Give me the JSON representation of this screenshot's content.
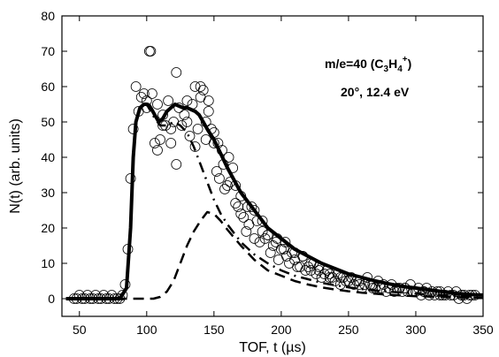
{
  "chart_data": {
    "type": "scatter",
    "title": "",
    "xlabel_prefix": "TOF, t (",
    "xlabel_unit": "µs",
    "xlabel_suffix": ")",
    "ylabel": "N(t) (arb. units)",
    "xlim": [
      37,
      350
    ],
    "ylim": [
      -5,
      80
    ],
    "xticks": [
      50,
      100,
      150,
      200,
      250,
      300,
      350
    ],
    "yticks": [
      0,
      10,
      20,
      30,
      40,
      50,
      60,
      70,
      80
    ],
    "annotation_line1": {
      "prefix": "m/e=40  (C",
      "sub1": "3",
      "mid": "H",
      "sub2": "4",
      "sup": "+",
      "suffix": ")"
    },
    "annotation_line2": "20°, 12.4 eV",
    "grid": false,
    "legend": "none",
    "series": [
      {
        "marker": "open-circle",
        "x": [
          46,
          48,
          50,
          52,
          54,
          56,
          58,
          60,
          62,
          64,
          66,
          68,
          70,
          72,
          74,
          76,
          78,
          80,
          82,
          84,
          86,
          88,
          90,
          92,
          94,
          96,
          98,
          100,
          102,
          104,
          106,
          108,
          110,
          112,
          114,
          116,
          118,
          120,
          122,
          124,
          126,
          128,
          130,
          132,
          134,
          136,
          138,
          140,
          142,
          144,
          146,
          148,
          150,
          152,
          154,
          156,
          158,
          160,
          162,
          164,
          166,
          168,
          170,
          172,
          174,
          176,
          178,
          180,
          182,
          184,
          186,
          188,
          190,
          192,
          194,
          196,
          198,
          200,
          202,
          204,
          206,
          208,
          210,
          212,
          214,
          216,
          218,
          220,
          222,
          224,
          226,
          228,
          230,
          232,
          234,
          236,
          238,
          240,
          242,
          244,
          246,
          248,
          250,
          252,
          254,
          256,
          258,
          260,
          262,
          264,
          266,
          268,
          270,
          272,
          274,
          276,
          278,
          280,
          282,
          284,
          286,
          288,
          290,
          292,
          294,
          296,
          298,
          300,
          302,
          304,
          306,
          308,
          310,
          312,
          314,
          316,
          318,
          320,
          322,
          324,
          326,
          328,
          330,
          332,
          334,
          336,
          338,
          340,
          342,
          344,
          100,
          103,
          108,
          112,
          118,
          122,
          130,
          136,
          140,
          144,
          146,
          150,
          153,
          157,
          161,
          166,
          170,
          175,
          180,
          186,
          190,
          197,
          203,
          210,
          216,
          222,
          228,
          236,
          244,
          258,
          268,
          280,
          292,
          306,
          318,
          334
        ],
        "y": [
          0,
          0,
          1,
          0,
          0,
          1,
          0,
          0,
          1,
          0,
          0,
          1,
          0,
          0,
          1,
          0,
          0,
          0,
          1,
          4,
          14,
          34,
          48,
          60,
          53,
          57,
          58,
          54,
          70,
          58,
          44,
          42,
          45,
          52,
          49,
          56,
          48,
          50,
          64,
          54,
          49,
          52,
          56,
          46,
          55,
          60,
          48,
          57,
          59,
          45,
          56,
          48,
          44,
          36,
          34,
          42,
          31,
          32,
          33,
          37,
          27,
          26,
          24,
          23,
          19,
          21,
          26,
          17,
          22,
          16,
          19,
          17,
          18,
          13,
          15,
          16,
          11,
          14,
          14,
          12,
          10,
          13,
          11,
          9,
          9,
          12,
          8,
          9,
          8,
          10,
          7,
          8,
          6,
          7,
          8,
          6,
          6,
          5,
          7,
          4,
          6,
          5,
          5,
          6,
          4,
          5,
          4,
          3,
          4,
          6,
          4,
          3,
          3,
          5,
          3,
          4,
          2,
          3,
          4,
          2,
          3,
          3,
          2,
          3,
          2,
          4,
          2,
          2,
          3,
          1,
          2,
          3,
          1,
          2,
          1,
          2,
          2,
          1,
          1,
          2,
          1,
          1,
          2,
          0,
          1,
          1,
          0,
          1,
          1,
          1,
          56,
          70,
          55,
          49,
          44,
          38,
          50,
          43,
          60,
          50,
          53,
          47,
          44,
          38,
          40,
          32,
          29,
          26,
          25,
          22,
          18,
          17,
          16,
          13,
          12,
          10,
          9,
          7,
          6,
          5,
          4,
          3,
          3,
          2,
          1,
          1
        ]
      },
      {
        "style": "solid",
        "x": [
          40,
          80,
          85,
          88,
          90,
          92,
          95,
          98,
          100,
          103,
          106,
          109,
          112,
          115,
          118,
          121,
          124,
          127,
          130,
          133,
          136,
          139,
          142,
          145,
          150,
          155,
          160,
          170,
          180,
          190,
          200,
          210,
          220,
          230,
          240,
          250,
          260,
          270,
          280,
          290,
          300,
          310,
          320,
          330,
          340,
          350
        ],
        "y": [
          0,
          0,
          3,
          20,
          40,
          50,
          54,
          55,
          55,
          54,
          52,
          50,
          51,
          53,
          54,
          55,
          54.5,
          54,
          54,
          53.5,
          53,
          52,
          50,
          48,
          45,
          41,
          37,
          30,
          25,
          20,
          17,
          14,
          12,
          10,
          8.5,
          7,
          6,
          5,
          4.2,
          3.5,
          3,
          2.5,
          2,
          1.5,
          1.2,
          1
        ]
      },
      {
        "style": "dash-dot",
        "x": [
          40,
          80,
          85,
          88,
          90,
          92,
          95,
          98,
          100,
          103,
          106,
          110,
          115,
          120,
          125,
          130,
          135,
          140,
          145,
          150,
          155,
          160,
          170,
          180,
          190,
          200,
          210,
          220,
          230,
          240,
          250,
          260,
          270,
          280,
          290,
          300,
          310,
          320,
          330,
          340,
          350
        ],
        "y": [
          0,
          0,
          3,
          20,
          40,
          50,
          54,
          55,
          55,
          53,
          51,
          49,
          49,
          50,
          49,
          47,
          43,
          38,
          33,
          28,
          24,
          21,
          16,
          12.5,
          10,
          8,
          6.5,
          5.5,
          4.5,
          3.8,
          3.2,
          2.7,
          2.3,
          2,
          1.7,
          1.4,
          1.2,
          1,
          0.8,
          0.6,
          0.5
        ]
      },
      {
        "style": "dashed",
        "x": [
          40,
          100,
          105,
          110,
          115,
          120,
          125,
          130,
          135,
          140,
          145,
          150,
          155,
          160,
          170,
          180,
          190,
          200,
          210,
          220,
          230,
          240,
          250,
          260,
          270,
          280,
          290,
          300,
          310,
          320,
          330,
          340,
          350
        ],
        "y": [
          0,
          0,
          0,
          0.5,
          2,
          5,
          10,
          15,
          19,
          22,
          24.5,
          24,
          22,
          19.5,
          15,
          11,
          8,
          6.5,
          5,
          4,
          3.2,
          2.6,
          2.1,
          1.7,
          1.4,
          1.1,
          0.9,
          0.7,
          0.6,
          0.5,
          0.4,
          0.3,
          0.2
        ]
      }
    ]
  }
}
